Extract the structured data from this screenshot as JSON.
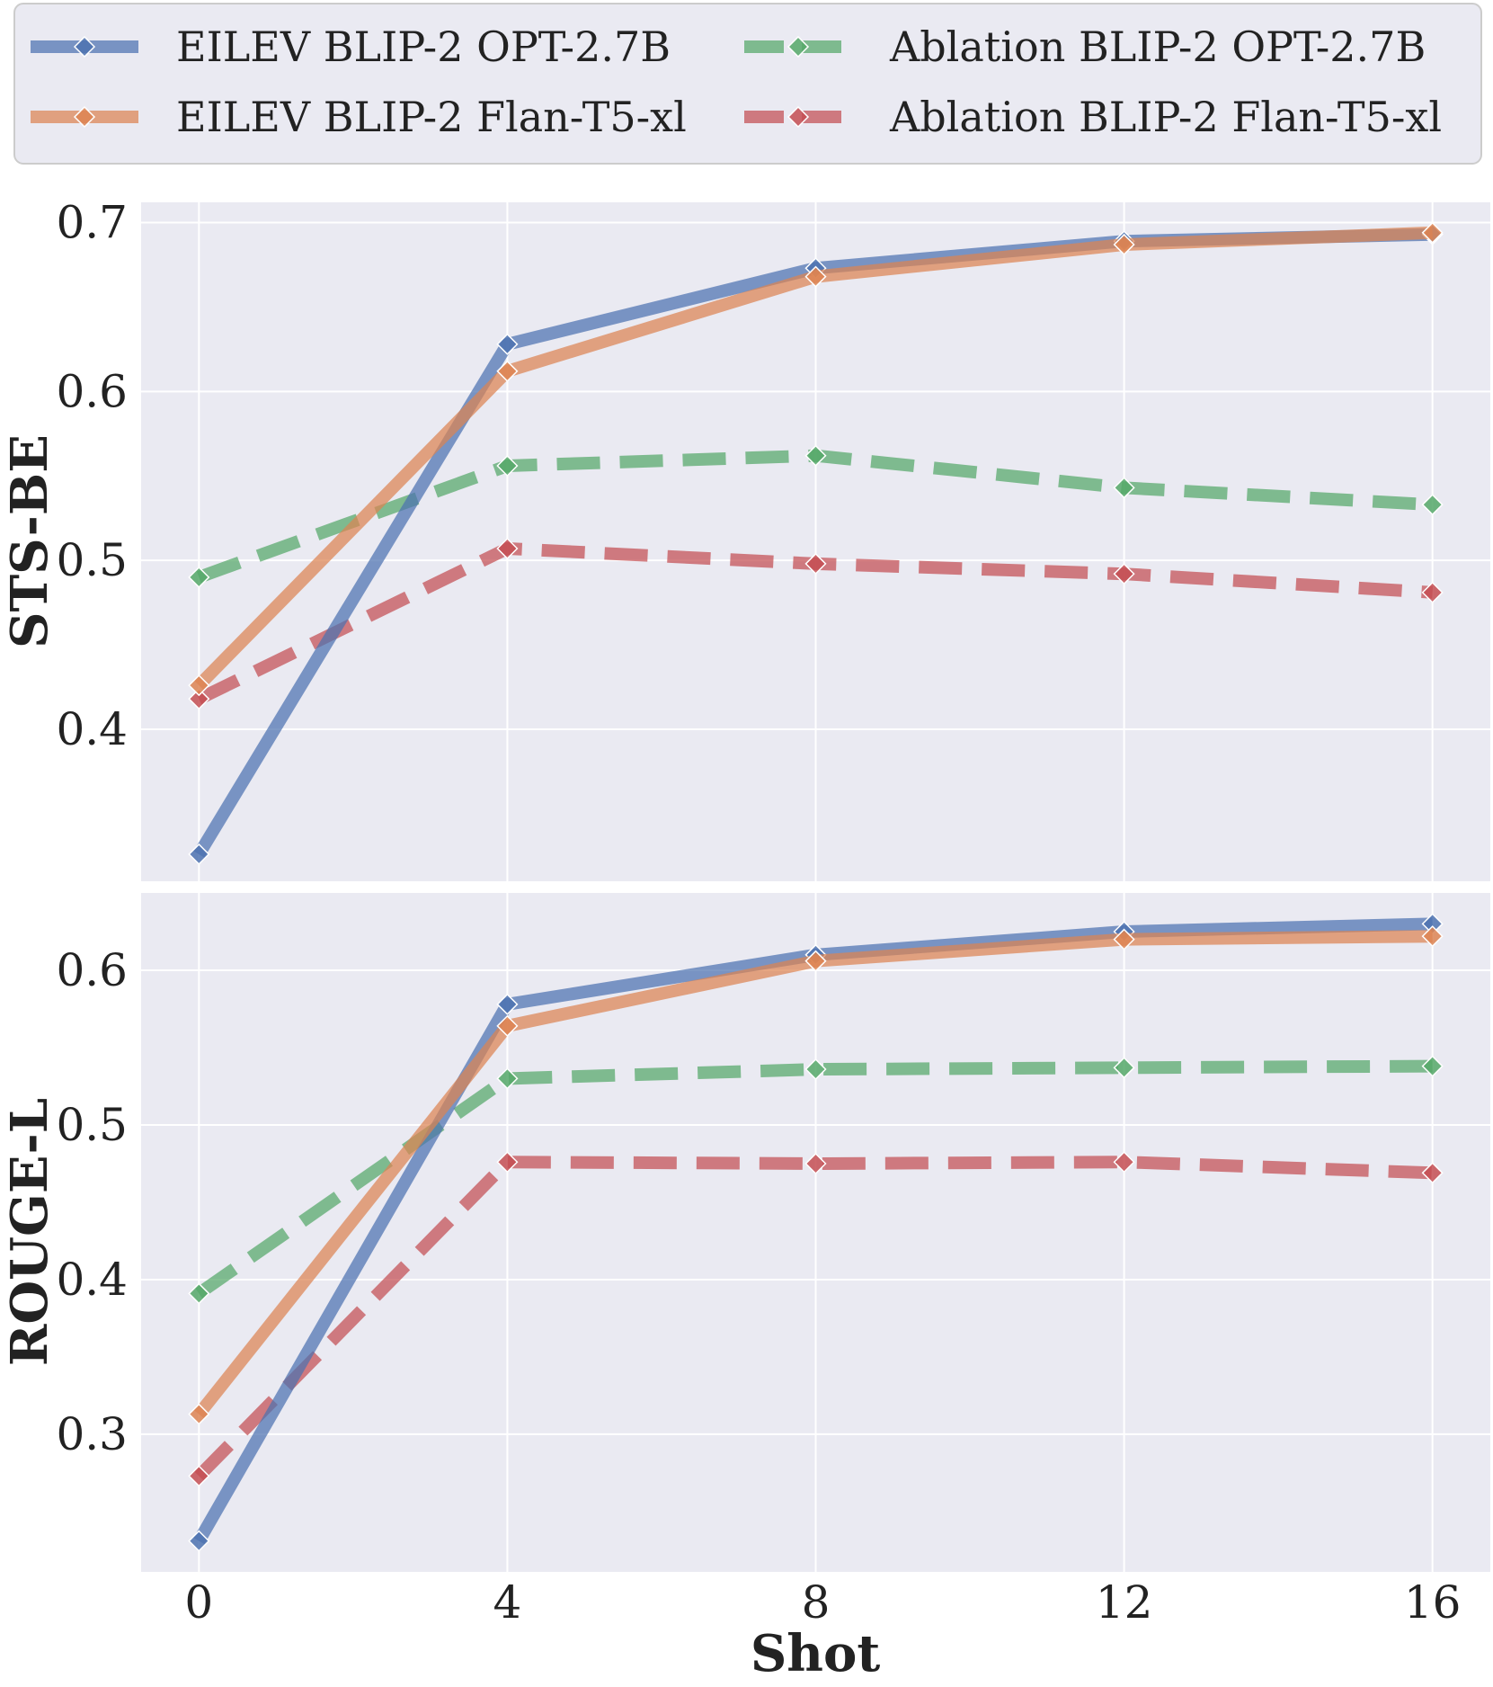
{
  "chart_data": {
    "type": "line",
    "x": [
      0,
      4,
      8,
      12,
      16
    ],
    "xlabel": "Shot",
    "x_ticks": [
      "0",
      "4",
      "8",
      "12",
      "16"
    ],
    "x_range": [
      -0.75,
      16.75
    ],
    "legend": {
      "placement": "top",
      "entries": [
        {
          "name": "EILEV BLIP-2 OPT-2.7B",
          "color": "#4c72b0",
          "style": "solid"
        },
        {
          "name": "Ablation BLIP-2 OPT-2.7B",
          "color": "#55a868",
          "style": "dashed"
        },
        {
          "name": "EILEV BLIP-2 Flan-T5-xl",
          "color": "#dd8452",
          "style": "solid"
        },
        {
          "name": "Ablation BLIP-2 Flan-T5-xl",
          "color": "#c44e52",
          "style": "dashed"
        }
      ]
    },
    "panels": [
      {
        "ylabel": "STS-BE",
        "ylim": [
          0.31,
          0.712
        ],
        "y_ticks": [
          0.4,
          0.5,
          0.6,
          0.7
        ],
        "y_tick_labels": [
          "0.4",
          "0.5",
          "0.6",
          "0.7"
        ],
        "grid": true,
        "show_x_ticks": false,
        "series": [
          {
            "name": "Ablation BLIP-2 OPT-2.7B",
            "color": "#55a868",
            "style": "dashed",
            "values": [
              0.49,
              0.556,
              0.562,
              0.543,
              0.533
            ]
          },
          {
            "name": "Ablation BLIP-2 Flan-T5-xl",
            "color": "#c44e52",
            "style": "dashed",
            "values": [
              0.418,
              0.507,
              0.498,
              0.492,
              0.481
            ]
          },
          {
            "name": "EILEV BLIP-2 OPT-2.7B",
            "color": "#4c72b0",
            "style": "solid",
            "values": [
              0.326,
              0.628,
              0.673,
              0.689,
              0.693
            ]
          },
          {
            "name": "EILEV BLIP-2 Flan-T5-xl",
            "color": "#dd8452",
            "style": "solid",
            "values": [
              0.426,
              0.612,
              0.668,
              0.687,
              0.694
            ]
          }
        ]
      },
      {
        "ylabel": "ROUGE-L",
        "ylim": [
          0.211,
          0.65
        ],
        "y_ticks": [
          0.3,
          0.4,
          0.5,
          0.6
        ],
        "y_tick_labels": [
          "0.3",
          "0.4",
          "0.5",
          "0.6"
        ],
        "grid": true,
        "show_x_ticks": true,
        "series": [
          {
            "name": "Ablation BLIP-2 OPT-2.7B",
            "color": "#55a868",
            "style": "dashed",
            "values": [
              0.391,
              0.53,
              0.536,
              0.537,
              0.538
            ]
          },
          {
            "name": "Ablation BLIP-2 Flan-T5-xl",
            "color": "#c44e52",
            "style": "dashed",
            "values": [
              0.273,
              0.476,
              0.475,
              0.476,
              0.469
            ]
          },
          {
            "name": "EILEV BLIP-2 OPT-2.7B",
            "color": "#4c72b0",
            "style": "solid",
            "values": [
              0.231,
              0.578,
              0.61,
              0.625,
              0.63
            ]
          },
          {
            "name": "EILEV BLIP-2 Flan-T5-xl",
            "color": "#dd8452",
            "style": "solid",
            "values": [
              0.313,
              0.564,
              0.606,
              0.62,
              0.622
            ]
          }
        ]
      }
    ]
  }
}
